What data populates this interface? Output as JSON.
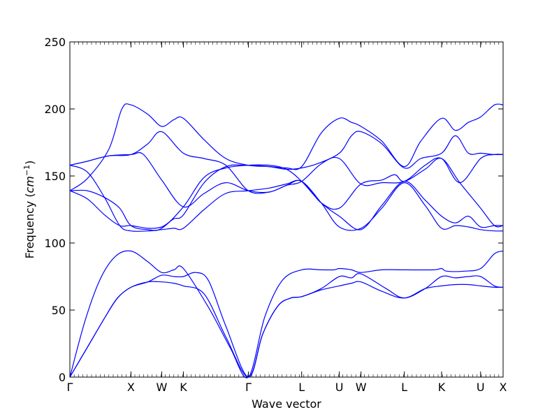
{
  "chart_data": {
    "type": "line",
    "xlabel": "Wave vector",
    "ylabel_text": "Frequency (",
    "ylabel_unit": "cm",
    "ylabel_exp": "−1",
    "ylabel_close": ")",
    "ylim": [
      0,
      250
    ],
    "yticks": [
      0,
      50,
      100,
      150,
      200,
      250
    ],
    "grid": false,
    "color": "#0000ff",
    "xlim": [
      0,
      10
    ],
    "high_symmetry_points": [
      {
        "label": "Γ",
        "x": 0.0
      },
      {
        "label": "X",
        "x": 1.41
      },
      {
        "label": "W",
        "x": 2.12
      },
      {
        "label": "K",
        "x": 2.62
      },
      {
        "label": "Γ",
        "x": 4.12
      },
      {
        "label": "L",
        "x": 5.35
      },
      {
        "label": "U",
        "x": 6.22
      },
      {
        "label": "W",
        "x": 6.72
      },
      {
        "label": "L",
        "x": 7.72
      },
      {
        "label": "K",
        "x": 8.58
      },
      {
        "label": "U",
        "x": 9.48
      },
      {
        "label": "X",
        "x": 10.0
      }
    ],
    "series": [
      {
        "points": [
          [
            0,
            0
          ],
          [
            0.35,
            42
          ],
          [
            0.7,
            73
          ],
          [
            1.05,
            90
          ],
          [
            1.41,
            94
          ],
          [
            1.8,
            86
          ],
          [
            2.12,
            78
          ],
          [
            2.4,
            80
          ],
          [
            2.62,
            81
          ],
          [
            3.2,
            52
          ],
          [
            3.7,
            22
          ],
          [
            4.12,
            0
          ],
          [
            4.5,
            45
          ],
          [
            4.9,
            72
          ],
          [
            5.35,
            80
          ],
          [
            5.8,
            80
          ],
          [
            6.1,
            80
          ],
          [
            6.22,
            81
          ],
          [
            6.5,
            80
          ],
          [
            6.72,
            78
          ],
          [
            7.2,
            80
          ],
          [
            7.72,
            80
          ],
          [
            8.4,
            80
          ],
          [
            8.58,
            81
          ],
          [
            8.7,
            79
          ],
          [
            9.1,
            79
          ],
          [
            9.48,
            81
          ],
          [
            9.8,
            92
          ],
          [
            10.0,
            94
          ]
        ]
      },
      {
        "points": [
          [
            0,
            0
          ],
          [
            0.4,
            22
          ],
          [
            0.8,
            44
          ],
          [
            1.1,
            59
          ],
          [
            1.41,
            67
          ],
          [
            1.8,
            71
          ],
          [
            2.12,
            71
          ],
          [
            2.4,
            70
          ],
          [
            2.62,
            68
          ],
          [
            3.1,
            62
          ],
          [
            3.6,
            30
          ],
          [
            4.12,
            0
          ],
          [
            4.45,
            32
          ],
          [
            4.8,
            53
          ],
          [
            5.1,
            59
          ],
          [
            5.35,
            60
          ],
          [
            5.8,
            66
          ],
          [
            6.22,
            75
          ],
          [
            6.5,
            74
          ],
          [
            6.72,
            77
          ],
          [
            7.3,
            66
          ],
          [
            7.72,
            59
          ],
          [
            8.2,
            66
          ],
          [
            8.58,
            75
          ],
          [
            8.9,
            74
          ],
          [
            9.2,
            75
          ],
          [
            9.48,
            75
          ],
          [
            9.8,
            68
          ],
          [
            10.0,
            67
          ]
        ]
      },
      {
        "points": [
          [
            0,
            0
          ],
          [
            0.4,
            22
          ],
          [
            0.8,
            44
          ],
          [
            1.1,
            59
          ],
          [
            1.41,
            67
          ],
          [
            1.8,
            71
          ],
          [
            2.12,
            76
          ],
          [
            2.4,
            75
          ],
          [
            2.62,
            75
          ],
          [
            2.9,
            78
          ],
          [
            3.2,
            72
          ],
          [
            3.6,
            38
          ],
          [
            4.12,
            0
          ],
          [
            4.45,
            32
          ],
          [
            4.8,
            53
          ],
          [
            5.1,
            59
          ],
          [
            5.35,
            60
          ],
          [
            5.8,
            65
          ],
          [
            6.22,
            68
          ],
          [
            6.5,
            70
          ],
          [
            6.72,
            71
          ],
          [
            7.2,
            64
          ],
          [
            7.72,
            59
          ],
          [
            8.2,
            66
          ],
          [
            8.58,
            68
          ],
          [
            8.9,
            69
          ],
          [
            9.2,
            69
          ],
          [
            9.48,
            68
          ],
          [
            9.8,
            67
          ],
          [
            10.0,
            67
          ]
        ]
      },
      {
        "points": [
          [
            0,
            139
          ],
          [
            0.4,
            133
          ],
          [
            0.8,
            121
          ],
          [
            1.15,
            113
          ],
          [
            1.41,
            113
          ],
          [
            1.8,
            111
          ],
          [
            2.12,
            112
          ],
          [
            2.4,
            118
          ],
          [
            2.62,
            121
          ],
          [
            3.1,
            145
          ],
          [
            3.6,
            157
          ],
          [
            4.12,
            158
          ],
          [
            4.6,
            157
          ],
          [
            5.0,
            155
          ],
          [
            5.35,
            156
          ],
          [
            5.7,
            159
          ],
          [
            6.22,
            167
          ],
          [
            6.5,
            180
          ],
          [
            6.72,
            183
          ],
          [
            7.2,
            174
          ],
          [
            7.72,
            156
          ],
          [
            8.1,
            163
          ],
          [
            8.58,
            167
          ],
          [
            8.9,
            180
          ],
          [
            9.2,
            167
          ],
          [
            9.48,
            167
          ],
          [
            9.8,
            166
          ],
          [
            10.0,
            166
          ]
        ]
      },
      {
        "points": [
          [
            0,
            158
          ],
          [
            0.4,
            153
          ],
          [
            0.8,
            134
          ],
          [
            1.15,
            113
          ],
          [
            1.41,
            109
          ],
          [
            1.8,
            109
          ],
          [
            2.12,
            110
          ],
          [
            2.4,
            111
          ],
          [
            2.62,
            111
          ],
          [
            3.1,
            125
          ],
          [
            3.6,
            137
          ],
          [
            4.12,
            139
          ],
          [
            4.6,
            141
          ],
          [
            5.0,
            144
          ],
          [
            5.35,
            146
          ],
          [
            5.8,
            130
          ],
          [
            6.22,
            112
          ],
          [
            6.72,
            111
          ],
          [
            7.2,
            126
          ],
          [
            7.72,
            145
          ],
          [
            8.2,
            128
          ],
          [
            8.58,
            111
          ],
          [
            8.9,
            113
          ],
          [
            9.2,
            112
          ],
          [
            9.48,
            110
          ],
          [
            9.8,
            109
          ],
          [
            10.0,
            109
          ]
        ]
      },
      {
        "points": [
          [
            0,
            139
          ],
          [
            0.4,
            139
          ],
          [
            0.8,
            134
          ],
          [
            1.15,
            126
          ],
          [
            1.41,
            113
          ],
          [
            1.8,
            110
          ],
          [
            2.12,
            111
          ],
          [
            2.62,
            127
          ],
          [
            3.1,
            149
          ],
          [
            3.6,
            156
          ],
          [
            4.12,
            158
          ],
          [
            4.6,
            158
          ],
          [
            5.0,
            155
          ],
          [
            5.35,
            146
          ],
          [
            5.8,
            130
          ],
          [
            6.22,
            120
          ],
          [
            6.72,
            110
          ],
          [
            7.2,
            128
          ],
          [
            7.72,
            146
          ],
          [
            8.2,
            132
          ],
          [
            8.58,
            120
          ],
          [
            8.9,
            115
          ],
          [
            9.2,
            120
          ],
          [
            9.48,
            112
          ],
          [
            9.8,
            113
          ],
          [
            10.0,
            113
          ]
        ]
      },
      {
        "points": [
          [
            0,
            158
          ],
          [
            0.4,
            161
          ],
          [
            0.9,
            165
          ],
          [
            1.41,
            166
          ],
          [
            1.7,
            166
          ],
          [
            2.12,
            147
          ],
          [
            2.62,
            127
          ],
          [
            3.1,
            137
          ],
          [
            3.6,
            145
          ],
          [
            4.12,
            139
          ],
          [
            4.6,
            138
          ],
          [
            5.0,
            143
          ],
          [
            5.35,
            146
          ],
          [
            5.8,
            159
          ],
          [
            6.22,
            163
          ],
          [
            6.72,
            144
          ],
          [
            7.2,
            145
          ],
          [
            7.72,
            146
          ],
          [
            8.2,
            158
          ],
          [
            8.58,
            163
          ],
          [
            9.0,
            145
          ],
          [
            9.48,
            163
          ],
          [
            9.8,
            166
          ],
          [
            10.0,
            166
          ]
        ]
      },
      {
        "points": [
          [
            0,
            158
          ],
          [
            0.4,
            161
          ],
          [
            0.9,
            165
          ],
          [
            1.41,
            166
          ],
          [
            1.8,
            174
          ],
          [
            2.12,
            183
          ],
          [
            2.62,
            167
          ],
          [
            3.1,
            163
          ],
          [
            3.6,
            158
          ],
          [
            4.12,
            139
          ],
          [
            4.6,
            138
          ],
          [
            5.0,
            143
          ],
          [
            5.35,
            146
          ],
          [
            5.8,
            130
          ],
          [
            6.22,
            126
          ],
          [
            6.72,
            144
          ],
          [
            7.2,
            147
          ],
          [
            7.5,
            151
          ],
          [
            7.72,
            146
          ],
          [
            8.2,
            155
          ],
          [
            8.58,
            163
          ],
          [
            9.0,
            145
          ],
          [
            9.48,
            126
          ],
          [
            9.8,
            113
          ],
          [
            10.0,
            113
          ]
        ]
      },
      {
        "points": [
          [
            0,
            139
          ],
          [
            0.4,
            148
          ],
          [
            0.9,
            170
          ],
          [
            1.2,
            200
          ],
          [
            1.41,
            203
          ],
          [
            1.8,
            196
          ],
          [
            2.12,
            187
          ],
          [
            2.4,
            192
          ],
          [
            2.62,
            193
          ],
          [
            3.1,
            177
          ],
          [
            3.6,
            163
          ],
          [
            4.12,
            158
          ],
          [
            4.6,
            157
          ],
          [
            5.0,
            156
          ],
          [
            5.35,
            157
          ],
          [
            5.8,
            182
          ],
          [
            6.22,
            193
          ],
          [
            6.5,
            190
          ],
          [
            6.72,
            187
          ],
          [
            7.2,
            176
          ],
          [
            7.72,
            157
          ],
          [
            8.1,
            176
          ],
          [
            8.58,
            193
          ],
          [
            8.9,
            184
          ],
          [
            9.2,
            190
          ],
          [
            9.48,
            194
          ],
          [
            9.8,
            203
          ],
          [
            10.0,
            203
          ]
        ]
      }
    ]
  }
}
